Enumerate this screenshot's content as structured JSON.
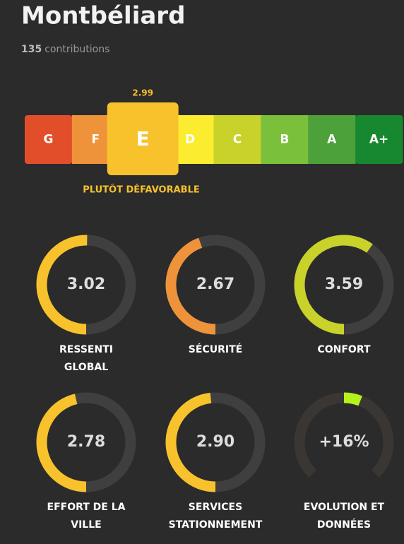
{
  "header": {
    "title": "Montbéliard",
    "contributions_count": 135,
    "contributions_label": "contributions"
  },
  "rating": {
    "score": 2.99,
    "grades": [
      "G",
      "F",
      "E",
      "D",
      "C",
      "B",
      "A",
      "A+"
    ],
    "colors": [
      "#e24e2a",
      "#ef933b",
      "#f8c22c",
      "#fcec2f",
      "#c8d22b",
      "#7bc03a",
      "#4ca13a",
      "#17882f"
    ],
    "selected": 2,
    "verdict": "PLUTÔT DÉFAVORABLE"
  },
  "value_range": [
    0,
    6
  ],
  "gauges": [
    {
      "label_lines": [
        "RESSENTI",
        "GLOBAL"
      ],
      "value": 3.02,
      "value_label": "3.02",
      "color": "#f8c22c"
    },
    {
      "label_lines": [
        "SÉCURITÉ"
      ],
      "value": 2.67,
      "value_label": "2.67",
      "color": "#ef933b"
    },
    {
      "label_lines": [
        "CONFORT"
      ],
      "value": 3.59,
      "value_label": "3.59",
      "color": "#c8d22b"
    },
    {
      "label_lines": [
        "EFFORT DE LA",
        "VILLE"
      ],
      "value": 2.78,
      "value_label": "2.78",
      "color": "#f8c22c"
    },
    {
      "label_lines": [
        "SERVICES",
        "STATIONNEMENT"
      ],
      "value": 2.9,
      "value_label": "2.90",
      "color": "#f8c22c"
    }
  ],
  "evolution": {
    "label_lines": [
      "EVOLUTION ET",
      "DONNÉES"
    ],
    "value": 16,
    "value_label": "+16%",
    "range": [
      -100,
      100
    ],
    "color": "#b5f21d"
  }
}
